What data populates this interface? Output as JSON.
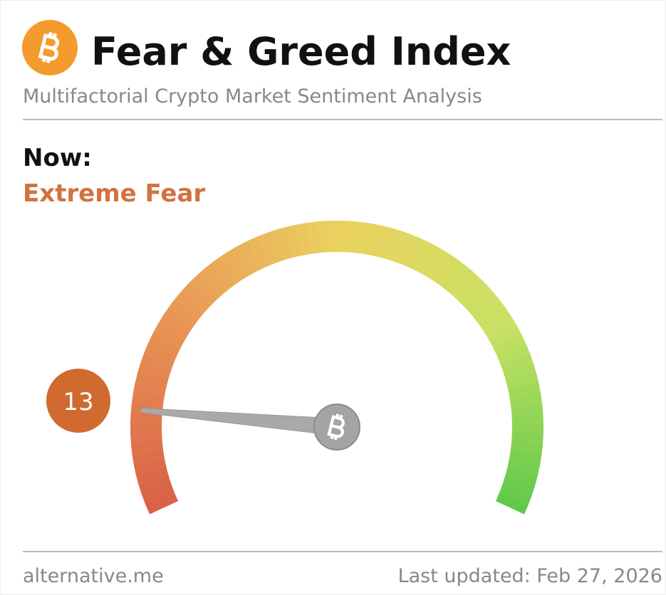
{
  "header": {
    "title": "Fear & Greed Index",
    "subtitle": "Multifactorial Crypto Market Sentiment Analysis"
  },
  "chart_data": {
    "type": "gauge",
    "label": "Now:",
    "classification": "Extreme Fear",
    "value": 13,
    "ylim": [
      0,
      100
    ],
    "color": "#d06a2e"
  },
  "footer": {
    "source": "alternative.me",
    "updated": "Last updated: Feb 27, 2026"
  }
}
